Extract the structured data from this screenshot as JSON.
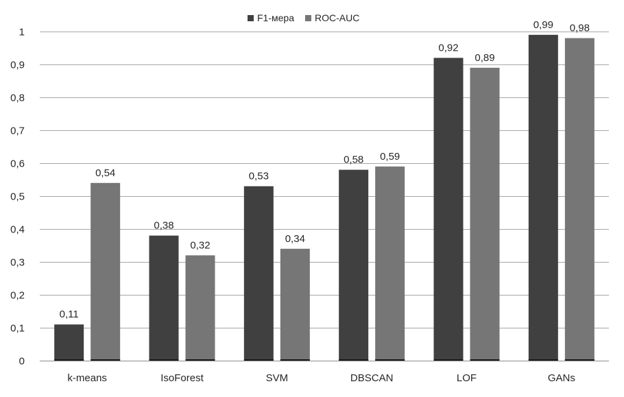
{
  "chart_data": {
    "type": "bar",
    "title": "",
    "xlabel": "",
    "ylabel": "",
    "categories": [
      "k-means",
      "IsoForest",
      "SVM",
      "DBSCAN",
      "LOF",
      "GANs"
    ],
    "series": [
      {
        "name": "F1-мера",
        "color": "#404040",
        "values": [
          0.11,
          0.38,
          0.53,
          0.58,
          0.92,
          0.99
        ],
        "labels": [
          "0,11",
          "0,38",
          "0,53",
          "0,58",
          "0,92",
          "0,99"
        ]
      },
      {
        "name": "ROC-AUC",
        "color": "#767676",
        "values": [
          0.54,
          0.32,
          0.34,
          0.59,
          0.89,
          0.98
        ],
        "labels": [
          "0,54",
          "0,32",
          "0,34",
          "0,59",
          "0,89",
          "0,98"
        ]
      }
    ],
    "ylim": [
      0,
      1
    ],
    "yticks": [
      0,
      0.1,
      0.2,
      0.3,
      0.4,
      0.5,
      0.6,
      0.7,
      0.8,
      0.9,
      1
    ],
    "ytick_labels": [
      "0",
      "0,1",
      "0,2",
      "0,3",
      "0,4",
      "0,5",
      "0,6",
      "0,7",
      "0,8",
      "0,9",
      "1"
    ],
    "grid": true,
    "legend_position": "top-center"
  }
}
